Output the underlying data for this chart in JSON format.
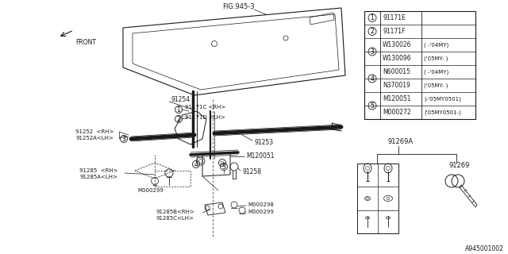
{
  "bg_color": "#ffffff",
  "line_color": "#1a1a1a",
  "fig_ref": "FIG.945-3",
  "part_number_label": "A945001002",
  "table_rows": [
    [
      "1",
      "91171E",
      ""
    ],
    [
      "2",
      "91171F",
      ""
    ],
    [
      "3",
      "W130026",
      "( -'04MY)"
    ],
    [
      "3",
      "W130096",
      "('05MY- )"
    ],
    [
      "4",
      "N600015",
      "( -'04MY)"
    ],
    [
      "4",
      "N370019",
      "('05MY- )"
    ],
    [
      "5",
      "M120051",
      "(-'05MY0501)"
    ],
    [
      "5",
      "M000272",
      "('05MY0501-)"
    ]
  ]
}
